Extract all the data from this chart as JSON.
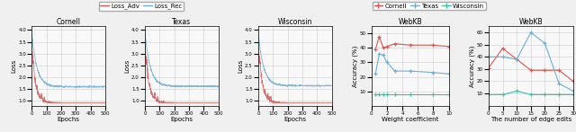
{
  "loss_titles": [
    "Cornell",
    "Texas",
    "Wisconsin"
  ],
  "webkb_titles": [
    "WebKB",
    "WebKB"
  ],
  "loss_xlabel": "Epochs",
  "loss_ylabel": "Loss",
  "webkb1_xlabel": "Weight coefficient",
  "webkb1_ylabel": "Accuracy (%)",
  "webkb2_xlabel": "The number of edge edits",
  "webkb2_ylabel": "Accuracy (%)",
  "webkb1_xticks": [
    0,
    2,
    4,
    6,
    8,
    10
  ],
  "webkb1_yticks": [
    10,
    20,
    30,
    40,
    50
  ],
  "webkb2_xticks": [
    0,
    5,
    10,
    15,
    20,
    25,
    30
  ],
  "webkb2_yticks": [
    10,
    20,
    30,
    40,
    50,
    60
  ],
  "webkb1_cornell": {
    "x": [
      0.5,
      1.0,
      1.5,
      2.0,
      3.0,
      5.0,
      8.0,
      10.0
    ],
    "y": [
      39,
      48,
      40,
      41,
      43,
      42,
      42,
      41
    ]
  },
  "webkb1_texas": {
    "x": [
      0.5,
      1.0,
      1.5,
      2.0,
      3.0,
      5.0,
      8.0,
      10.0
    ],
    "y": [
      22,
      36,
      35,
      30,
      24,
      24,
      23,
      22
    ]
  },
  "webkb1_wisconsin": {
    "x": [
      0.5,
      1.0,
      1.5,
      2.0,
      3.0,
      5.0,
      8.0,
      10.0
    ],
    "y": [
      8,
      8,
      8,
      8,
      8,
      8,
      8,
      8
    ]
  },
  "webkb2_cornell": {
    "x": [
      0,
      5,
      10,
      15,
      20,
      25,
      30
    ],
    "y": [
      31,
      47,
      38,
      29,
      29,
      29,
      20
    ]
  },
  "webkb2_texas": {
    "x": [
      0,
      5,
      10,
      15,
      20,
      25,
      30
    ],
    "y": [
      40,
      40,
      38,
      60,
      51,
      18,
      12
    ]
  },
  "webkb2_wisconsin": {
    "x": [
      0,
      5,
      10,
      15,
      20,
      25,
      30
    ],
    "y": [
      9,
      9,
      12,
      9,
      9,
      9,
      9
    ]
  },
  "adv_color": "#d9534f",
  "rec_color": "#6baed6",
  "cornell_color": "#d9534f",
  "texas_color": "#6baed6",
  "wisconsin_color": "#3dbfaa",
  "fig_facecolor": "#f0f0f0",
  "ax_facecolor": "#f8f8f8",
  "grid_color": "#cccccc"
}
